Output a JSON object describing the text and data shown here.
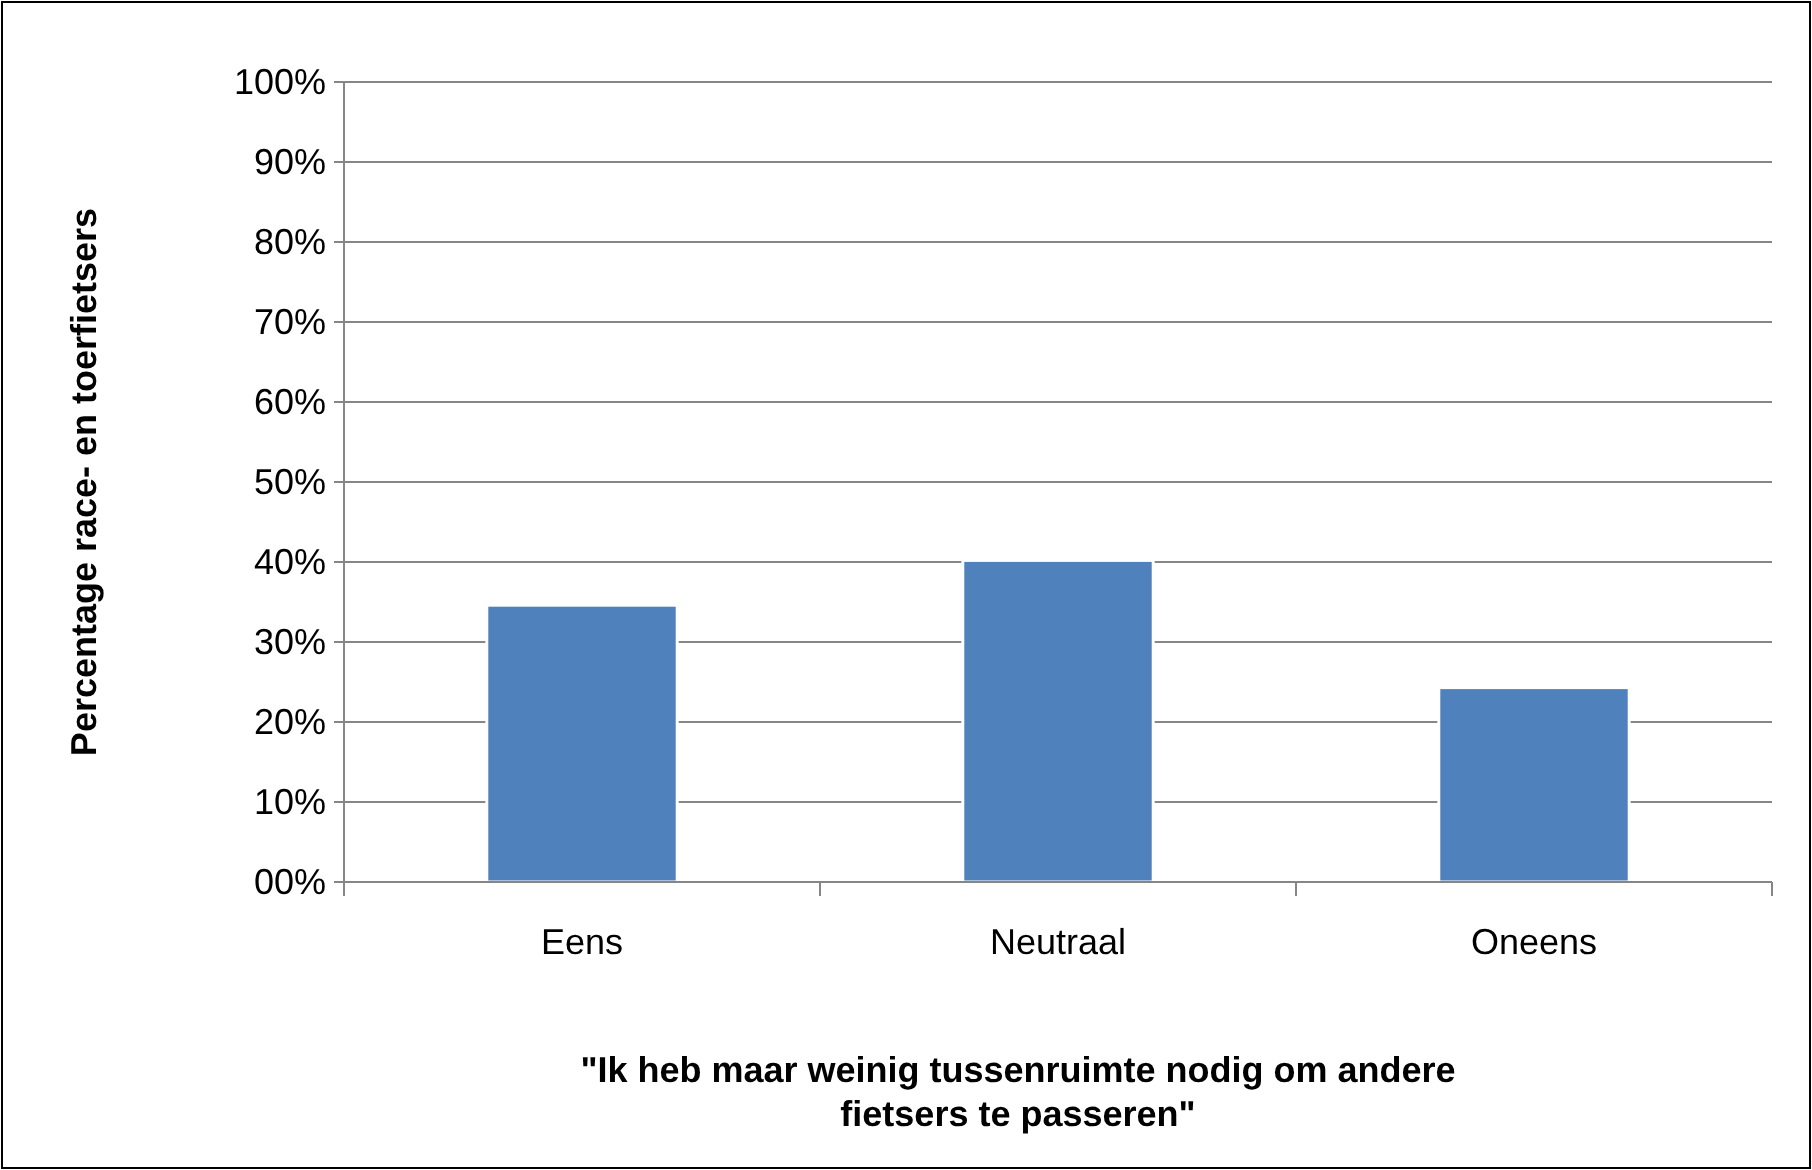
{
  "chart_data": {
    "type": "bar",
    "xlabel": "\"Ik heb maar weinig tussenruimte nodig om andere fietsers te passeren\"",
    "ylabel": "Percentage race- en toerfietsers",
    "categories": [
      "Eens",
      "Neutraal",
      "Oneens"
    ],
    "values": [
      34.6,
      40.2,
      24.3
    ],
    "color": "#4f81bd",
    "ylim": [
      0,
      100
    ],
    "yticks": [
      {
        "value": 0,
        "label": "00%"
      },
      {
        "value": 10,
        "label": "10%"
      },
      {
        "value": 20,
        "label": "20%"
      },
      {
        "value": 30,
        "label": "30%"
      },
      {
        "value": 40,
        "label": "40%"
      },
      {
        "value": 50,
        "label": "50%"
      },
      {
        "value": 60,
        "label": "60%"
      },
      {
        "value": 70,
        "label": "70%"
      },
      {
        "value": 80,
        "label": "80%"
      },
      {
        "value": 90,
        "label": "90%"
      },
      {
        "value": 100,
        "label": "100%"
      }
    ],
    "grid": "y"
  }
}
